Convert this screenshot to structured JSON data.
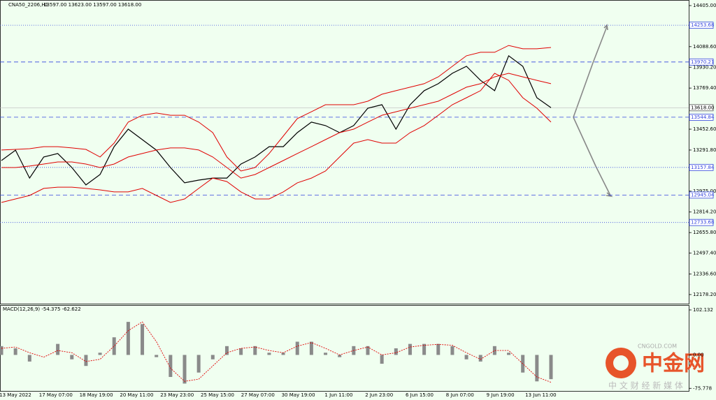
{
  "chart_data": {
    "type": "line",
    "title": "CNA50_2206,H1",
    "quote": "13597.00 13623.00 13597.00 13618.00",
    "x_labels": [
      "13 May 2022",
      "17 May 07:00",
      "18 May 19:00",
      "20 May 11:00",
      "23 May 23:00",
      "25 May 15:00",
      "27 May 07:00",
      "30 May 19:00",
      "1 Jun 11:00",
      "2 Jun 23:00",
      "6 Jun 15:00",
      "8 Jun 07:00",
      "9 Jun 19:00",
      "13 Jun 11:00"
    ],
    "series": [
      {
        "color": "#000000",
        "values": [
          13211,
          13291,
          13076,
          13238,
          13265,
          13157,
          13023,
          13103,
          13318,
          13453,
          13372,
          13291,
          13157,
          13039,
          13060,
          13076,
          13076,
          13184,
          13238,
          13318,
          13318,
          13426,
          13507,
          13480,
          13426,
          13480,
          13614,
          13641,
          13453,
          13641,
          13749,
          13803,
          13883,
          13937,
          13829,
          13749,
          14018,
          13937,
          13695,
          13618
        ]
      },
      {
        "color": "#e00000",
        "values": [
          13292,
          13297,
          13302,
          13318,
          13318,
          13308,
          13297,
          13238,
          13345,
          13507,
          13560,
          13577,
          13560,
          13560,
          13507,
          13426,
          13238,
          13130,
          13157,
          13265,
          13399,
          13534,
          13587,
          13641,
          13641,
          13641,
          13668,
          13722,
          13749,
          13776,
          13803,
          13856,
          13937,
          14018,
          14045,
          14045,
          14098,
          14072,
          14072,
          14082
        ]
      },
      {
        "color": "#e00000",
        "values": [
          13157,
          13157,
          13168,
          13184,
          13200,
          13200,
          13184,
          13157,
          13184,
          13238,
          13265,
          13292,
          13308,
          13308,
          13292,
          13238,
          13157,
          13076,
          13103,
          13157,
          13211,
          13265,
          13318,
          13372,
          13426,
          13453,
          13507,
          13560,
          13587,
          13614,
          13641,
          13668,
          13722,
          13776,
          13803,
          13856,
          13883,
          13856,
          13829,
          13803
        ]
      },
      {
        "color": "#e00000",
        "values": [
          12888,
          12915,
          12942,
          12996,
          13006,
          13006,
          12996,
          12985,
          12969,
          12969,
          12996,
          12942,
          12888,
          12915,
          12996,
          13076,
          13049,
          12969,
          12915,
          12915,
          12969,
          13039,
          13076,
          13130,
          13238,
          13345,
          13372,
          13345,
          13345,
          13426,
          13480,
          13560,
          13641,
          13695,
          13749,
          13883,
          13829,
          13695,
          13614,
          13507
        ]
      }
    ],
    "ylim": [
      12108,
      14448
    ],
    "yticks": [
      {
        "value": 14405,
        "label": "14405.00"
      },
      {
        "value": 14088.6,
        "label": "14088.60"
      },
      {
        "value": 13930.2,
        "label": "13930.20"
      },
      {
        "value": 13769.4,
        "label": "13769.40"
      },
      {
        "value": 13452.6,
        "label": "13452.60"
      },
      {
        "value": 13291.8,
        "label": "13291.80"
      },
      {
        "value": 12975,
        "label": "12975.00"
      },
      {
        "value": 12814.2,
        "label": "12814.20"
      },
      {
        "value": 12655.8,
        "label": "12655.80"
      },
      {
        "value": 12497.4,
        "label": "12497.40"
      },
      {
        "value": 12336.6,
        "label": "12336.60"
      },
      {
        "value": 12178.2,
        "label": "12178.20"
      }
    ],
    "levels": [
      {
        "value": 14253.68,
        "style": "dotted"
      },
      {
        "value": 13970.21,
        "style": "dashed"
      },
      {
        "value": 13544.84,
        "style": "dashed"
      },
      {
        "value": 13157.84,
        "style": "dotted"
      },
      {
        "value": 12945.04,
        "style": "dashed"
      },
      {
        "value": 12733.68,
        "style": "dotted"
      }
    ],
    "level_color": "#3344dd",
    "current": {
      "value": 13618,
      "label": "13618.00"
    },
    "macd": {
      "title": "MACD(12,26,9) -54.375 -62.622",
      "histogram": {
        "color": "#8a8a8a",
        "values": [
          20,
          15,
          -15,
          0,
          25,
          -10,
          -25,
          5,
          40,
          75,
          70,
          -5,
          -50,
          -65,
          -40,
          -10,
          20,
          15,
          20,
          5,
          5,
          30,
          30,
          5,
          -5,
          20,
          20,
          -20,
          15,
          25,
          25,
          25,
          20,
          -10,
          -15,
          20,
          5,
          -40,
          -60,
          -55
        ]
      },
      "signal": {
        "color": "#e00000",
        "values": [
          15,
          18,
          5,
          -5,
          10,
          5,
          -15,
          -10,
          20,
          55,
          75,
          30,
          -30,
          -60,
          -55,
          -25,
          5,
          15,
          18,
          10,
          5,
          20,
          28,
          15,
          0,
          10,
          18,
          0,
          5,
          18,
          22,
          24,
          22,
          5,
          -10,
          10,
          10,
          -20,
          -50,
          -62
        ]
      },
      "ylim": [
        -81.7,
        111.6
      ],
      "yticks": [
        102.132,
        {
          "value": 0,
          "label": "0.00"
        },
        -75.778
      ]
    }
  },
  "watermark": {
    "brand": "中金网",
    "site": "CNGOLD.COM",
    "tagline": "中 文 财 经 新 媒 体"
  }
}
